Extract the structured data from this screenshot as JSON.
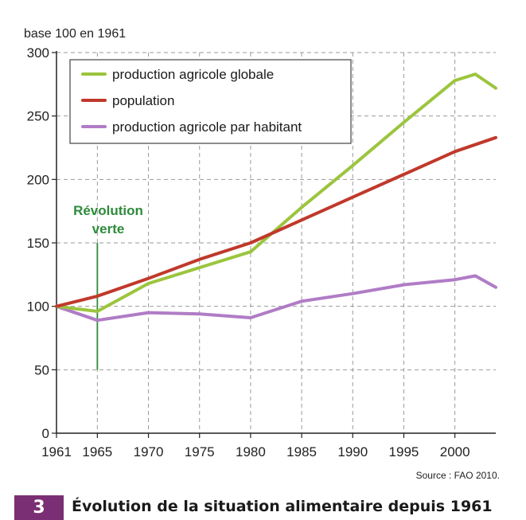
{
  "chart_data": {
    "type": "line",
    "ylabel": "base 100 en 1961",
    "xlim": [
      1961,
      2004
    ],
    "ylim": [
      0,
      300
    ],
    "x_ticks": [
      1961,
      1965,
      1970,
      1975,
      1980,
      1985,
      1990,
      1995,
      2000
    ],
    "y_ticks": [
      0,
      50,
      100,
      150,
      200,
      250,
      300
    ],
    "grid": true,
    "legend_position": "top-left",
    "series": [
      {
        "name": "production agricole globale",
        "color": "#9bc53d",
        "points": [
          [
            1961,
            100
          ],
          [
            1965,
            96
          ],
          [
            1970,
            118
          ],
          [
            1980,
            143
          ],
          [
            1985,
            178
          ],
          [
            1990,
            211
          ],
          [
            1995,
            245
          ],
          [
            2000,
            278
          ],
          [
            2002,
            283
          ],
          [
            2004,
            272
          ]
        ]
      },
      {
        "name": "population",
        "color": "#c0392b",
        "points": [
          [
            1961,
            100
          ],
          [
            1965,
            108
          ],
          [
            1970,
            122
          ],
          [
            1975,
            137
          ],
          [
            1980,
            150
          ],
          [
            1985,
            168
          ],
          [
            1990,
            186
          ],
          [
            1995,
            204
          ],
          [
            2000,
            222
          ],
          [
            2004,
            233
          ]
        ]
      },
      {
        "name": "production agricole par habitant",
        "color": "#b07cc6",
        "points": [
          [
            1961,
            100
          ],
          [
            1965,
            89
          ],
          [
            1970,
            95
          ],
          [
            1975,
            94
          ],
          [
            1980,
            91
          ],
          [
            1985,
            104
          ],
          [
            1990,
            110
          ],
          [
            1995,
            117
          ],
          [
            2000,
            121
          ],
          [
            2002,
            124
          ],
          [
            2004,
            115
          ]
        ]
      }
    ],
    "annotation": {
      "text_line1": "Révolution",
      "text_line2": "verte",
      "x": 1965,
      "y_from": 50,
      "y_to": 150,
      "color": "#2e8b3a"
    }
  },
  "source": "Source : FAO 2010.",
  "figure": {
    "number": "3",
    "title": "Évolution de la situation alimentaire depuis 1961"
  }
}
